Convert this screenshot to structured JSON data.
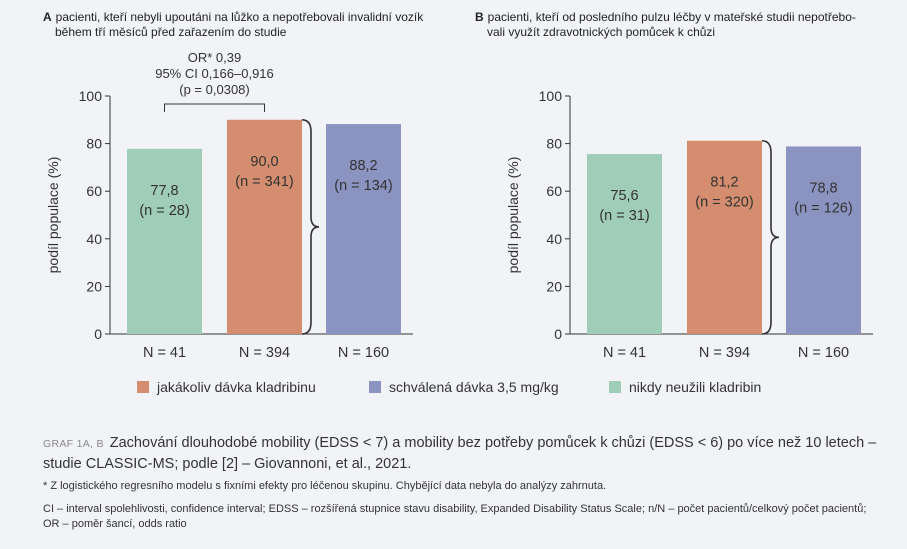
{
  "panels": [
    {
      "letter": "A",
      "title_line1": "pacienti, kteří nebyli upoutáni na lůžko a nepotřebovali invalidní vozík",
      "title_line2": "během tří měsíců před zařazením do studie",
      "annotation": [
        "OR* 0,39",
        "95% CI 0,166–0,916",
        "(p = 0,0308)"
      ]
    },
    {
      "letter": "B",
      "title_line1": "pacienti, kteří od posledního pulzu léčby v mateřské studii nepotřebo-",
      "title_line2": "vali využít zdravotnických pomůcek k chůzi",
      "annotation": []
    }
  ],
  "legend": [
    {
      "label": "jakákoliv dávka kladribinu",
      "color": "#d48d6f"
    },
    {
      "label": "schválená dávka 3,5 mg/kg",
      "color": "#8b93c1"
    },
    {
      "label": "nikdy neužili kladribin",
      "color": "#9fcdb8"
    }
  ],
  "caption": {
    "tag": "GRAF 1A, B",
    "main": "Zachování dlouhodobé mobility (EDSS < 7) a mobility bez potřeby pomůcek k chůzi (EDSS < 6) po více než 10 letech – studie CLASSIC-MS; podle [2] – Giovannoni, et al., 2021.",
    "note1": "* Z logistického regresního modelu s fixními efekty pro léčenou skupinu. Chybějící data nebyla do analýzy zahrnuta.",
    "note2": "CI – interval spolehlivosti, confidence interval; EDSS – rozšířená stupnice stavu disability, Expanded Disability Status Scale; n/N – počet pacientů/celkový počet pacientů; OR – poměr šancí, odds ratio"
  },
  "chart_data": [
    {
      "type": "bar",
      "panel": "A",
      "categories": [
        "N = 41",
        "N = 394",
        "N = 160"
      ],
      "values": [
        77.8,
        90.0,
        88.2
      ],
      "value_labels": [
        "77,8",
        "90,0",
        "88,2"
      ],
      "n_labels": [
        "(n = 28)",
        "(n = 341)",
        "(n = 134)"
      ],
      "colors": [
        "#9fcdb8",
        "#d48d6f",
        "#8b93c1"
      ],
      "ylabel": "podíl populace (%)",
      "ylim": [
        0,
        100
      ],
      "yticks": [
        0,
        20,
        40,
        60,
        80,
        100
      ]
    },
    {
      "type": "bar",
      "panel": "B",
      "categories": [
        "N = 41",
        "N = 394",
        "N = 160"
      ],
      "values": [
        75.6,
        81.2,
        78.8
      ],
      "value_labels": [
        "75,6",
        "81,2",
        "78,8"
      ],
      "n_labels": [
        "(n = 31)",
        "(n = 320)",
        "(n = 126)"
      ],
      "colors": [
        "#9fcdb8",
        "#d48d6f",
        "#8b93c1"
      ],
      "ylabel": "podíl populace (%)",
      "ylim": [
        0,
        100
      ],
      "yticks": [
        0,
        20,
        40,
        60,
        80,
        100
      ]
    }
  ]
}
